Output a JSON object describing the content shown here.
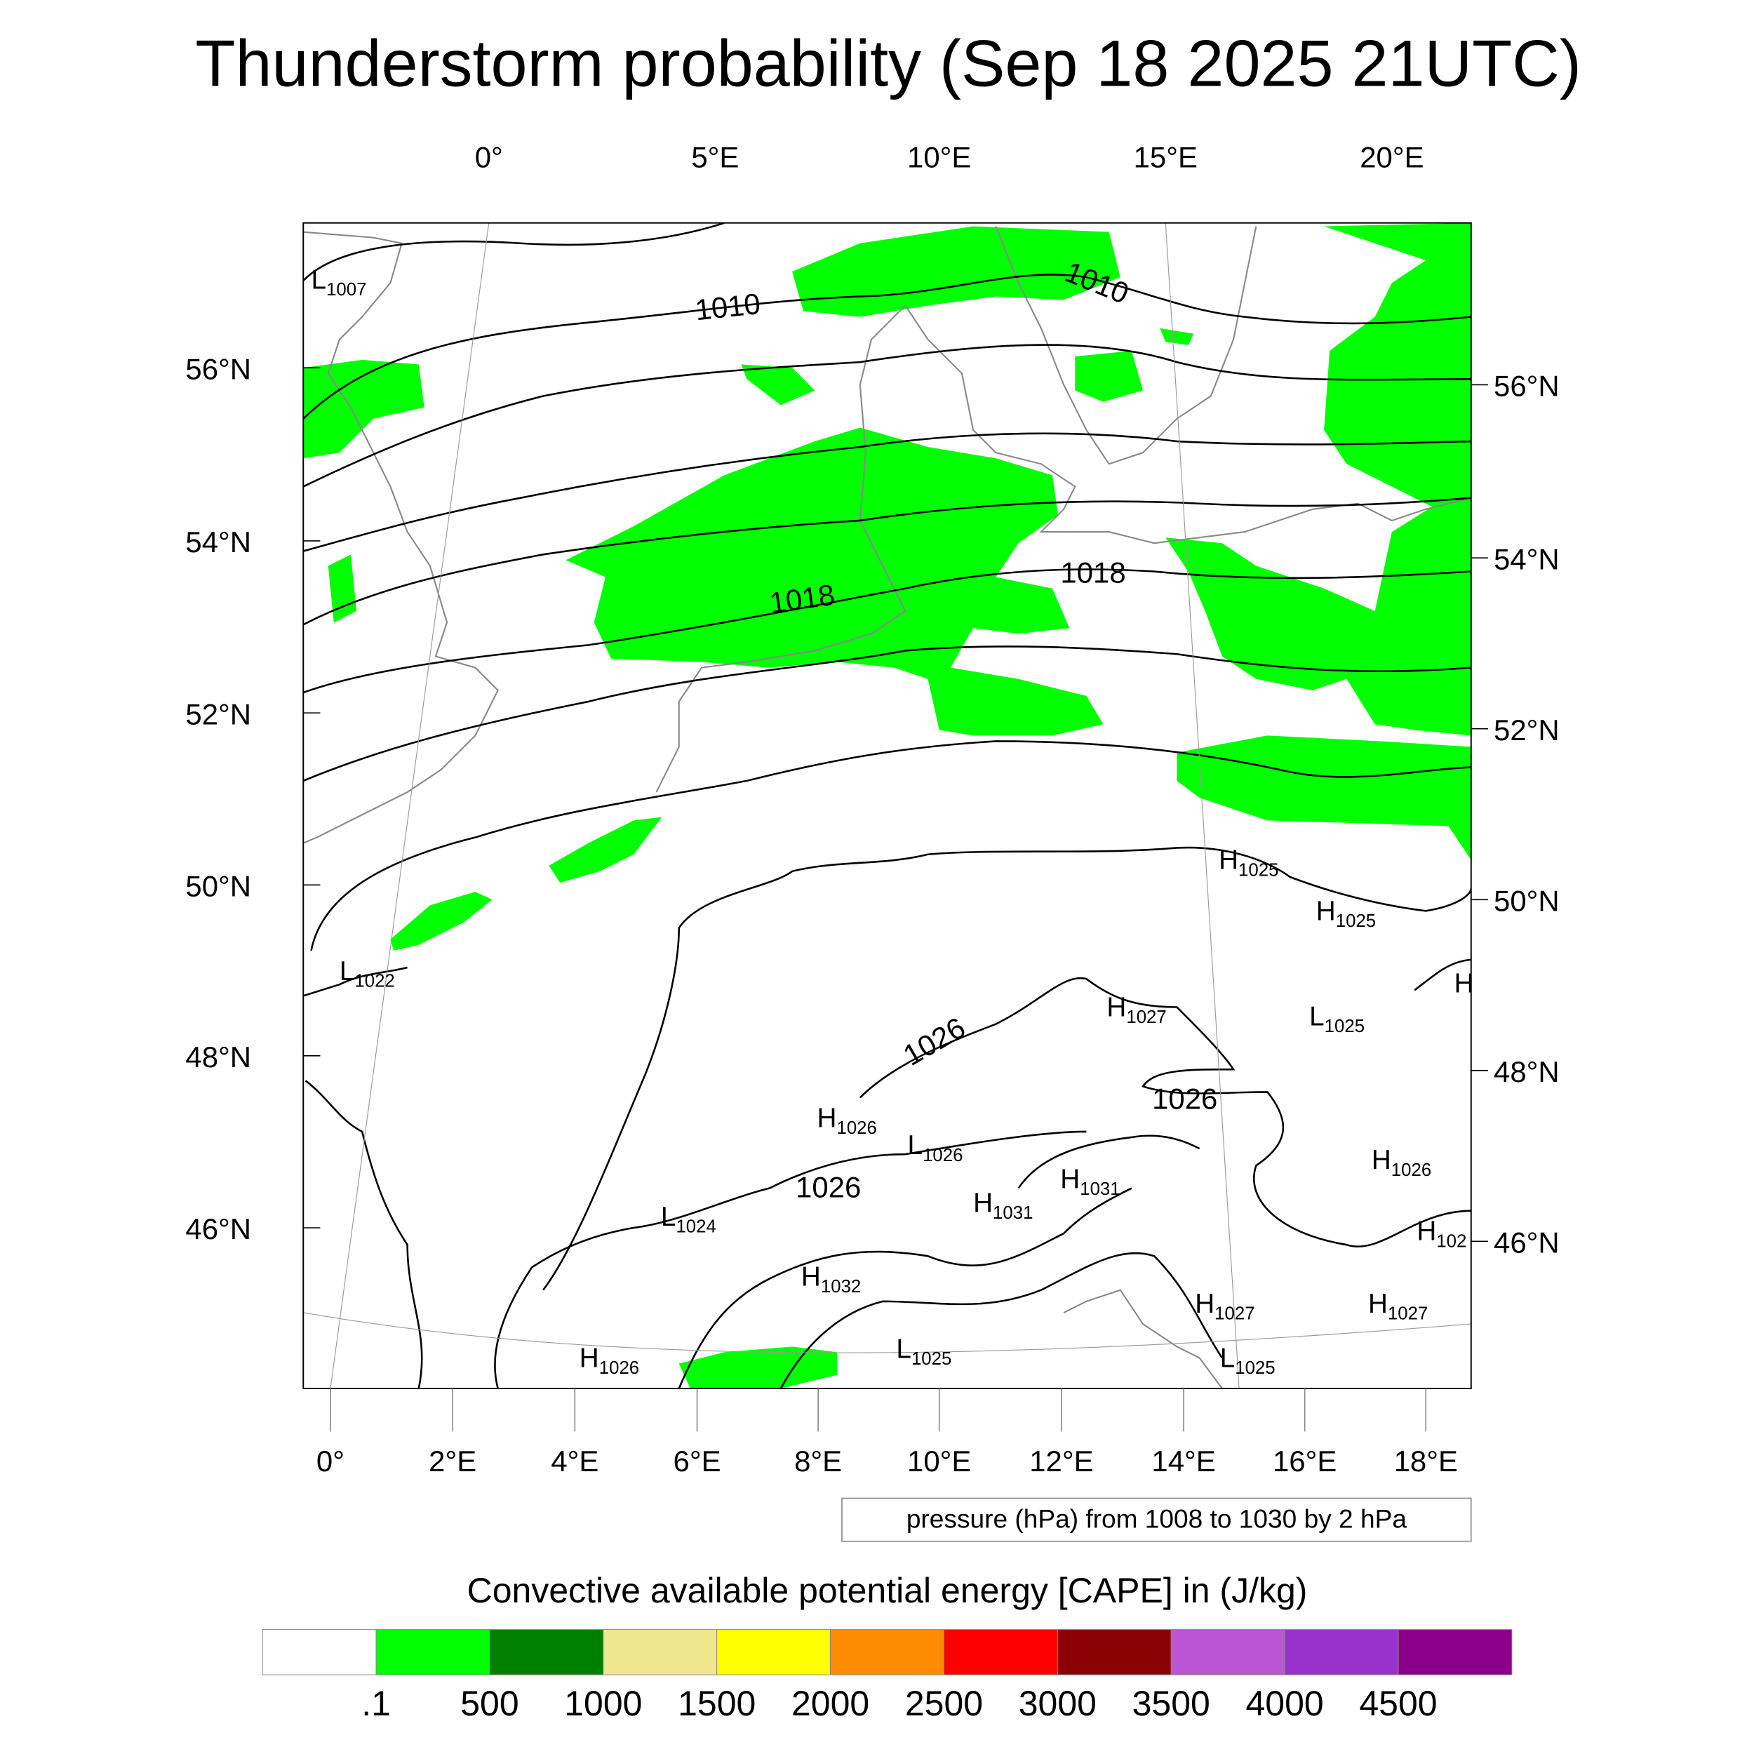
{
  "title": "Thunderstorm probability (Sep 18 2025 21UTC)",
  "axes": {
    "top_lon_ticks": [
      "0°",
      "5°E",
      "10°E",
      "15°E",
      "20°E"
    ],
    "left_lat_ticks": [
      "56°N",
      "54°N",
      "52°N",
      "50°N",
      "48°N",
      "46°N"
    ],
    "right_lat_ticks": [
      "56°N",
      "54°N",
      "52°N",
      "50°N",
      "48°N",
      "46°N"
    ],
    "bottom_lon_ticks": [
      "0°",
      "2°E",
      "4°E",
      "6°E",
      "8°E",
      "10°E",
      "12°E",
      "14°E",
      "16°E",
      "18°E"
    ]
  },
  "contour_labels": [
    "1010",
    "1010",
    "1018",
    "1018",
    "1026",
    "1026",
    "1026"
  ],
  "pressure_centers": [
    {
      "t": "L",
      "v": "1007"
    },
    {
      "t": "L",
      "v": "1022"
    },
    {
      "t": "H",
      "v": "1025"
    },
    {
      "t": "H",
      "v": "1025"
    },
    {
      "t": "H",
      "v": ""
    },
    {
      "t": "H",
      "v": "1027"
    },
    {
      "t": "L",
      "v": "1025"
    },
    {
      "t": "H",
      "v": "1026"
    },
    {
      "t": "L",
      "v": "1026"
    },
    {
      "t": "H",
      "v": "1031"
    },
    {
      "t": "H",
      "v": "1031"
    },
    {
      "t": "L",
      "v": "1024"
    },
    {
      "t": "H",
      "v": "1026"
    },
    {
      "t": "H",
      "v": "102"
    },
    {
      "t": "H",
      "v": "1032"
    },
    {
      "t": "H",
      "v": "1027"
    },
    {
      "t": "H",
      "v": "1027"
    },
    {
      "t": "H",
      "v": "1026"
    },
    {
      "t": "L",
      "v": "1025"
    },
    {
      "t": "L",
      "v": "1025"
    }
  ],
  "contour_info": "pressure (hPa) from 1008 to 1030 by 2 hPa",
  "chart_data": {
    "type": "heatmap",
    "title": "Thunderstorm probability (Sep 18 2025 21UTC)",
    "fill_variable": "Convective available potential energy [CAPE] in (J/kg)",
    "contour_variable": "pressure (hPa)",
    "contour_range": [
      1008,
      1030
    ],
    "contour_interval": 2,
    "lon_range": [
      -0.5,
      19
    ],
    "lat_range": [
      44.5,
      57.5
    ],
    "colorbar": {
      "title": "Convective available potential energy [CAPE] in (J/kg)",
      "labels": [
        ".1",
        "500",
        "1000",
        "1500",
        "2000",
        "2500",
        "3000",
        "3500",
        "4000",
        "4500"
      ],
      "colors": [
        "#ffffff",
        "#00ff00",
        "#008000",
        "#f0e68c",
        "#ffff00",
        "#ff8c00",
        "#ff0000",
        "#8b0000",
        "#ba55d3",
        "#9932cc",
        "#8b008b"
      ]
    }
  }
}
